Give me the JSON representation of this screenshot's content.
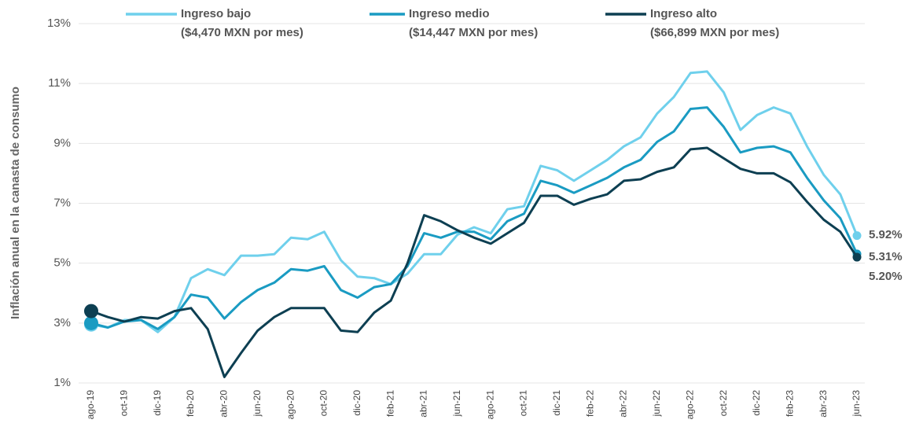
{
  "chart_data": {
    "type": "line",
    "y_label": "Inflación anual en la canasta de consumo",
    "categories": [
      "ago-19",
      null,
      "oct-19",
      null,
      "dic-19",
      null,
      "feb-20",
      null,
      "abr-20",
      null,
      "jun-20",
      null,
      "ago-20",
      null,
      "oct-20",
      null,
      "dic-20",
      null,
      "feb-21",
      null,
      "abr-21",
      null,
      "jun-21",
      null,
      "ago-21",
      null,
      "oct-21",
      null,
      "dic-21",
      null,
      "feb-22",
      null,
      "abr-22",
      null,
      "jun-22",
      null,
      "ago-22",
      null,
      "oct-22",
      null,
      "dic-22",
      null,
      "feb-23",
      null,
      "abr-23",
      null,
      "jun-23"
    ],
    "ylim": [
      1,
      13
    ],
    "yticks": [
      {
        "value": 1,
        "label": "1%"
      },
      {
        "value": 3,
        "label": "3%"
      },
      {
        "value": 5,
        "label": "5%"
      },
      {
        "value": 7,
        "label": "7%"
      },
      {
        "value": 9,
        "label": "9%"
      },
      {
        "value": 11,
        "label": "11%"
      },
      {
        "value": 13,
        "label": "13%"
      }
    ],
    "grid": true,
    "series": [
      {
        "name": "Ingreso bajo",
        "detail": "($4,470 MXN por mes)",
        "color": "#6fd0ec",
        "values": [
          2.95,
          2.85,
          3.1,
          3.1,
          2.7,
          3.2,
          4.5,
          4.8,
          4.6,
          5.25,
          5.25,
          5.3,
          5.85,
          5.8,
          6.05,
          5.1,
          4.55,
          4.5,
          4.3,
          4.65,
          5.3,
          5.3,
          5.95,
          6.2,
          6.0,
          6.8,
          6.9,
          8.25,
          8.1,
          7.75,
          8.1,
          8.45,
          8.9,
          9.2,
          10.0,
          10.55,
          11.35,
          11.4,
          10.7,
          9.45,
          9.95,
          10.2,
          10.0,
          8.9,
          7.95,
          7.3,
          5.92
        ],
        "value_labels": [
          null,
          null,
          null,
          null,
          null,
          null,
          null,
          null,
          null,
          null,
          null,
          null,
          null,
          null,
          null,
          null,
          null,
          null,
          null,
          null,
          null,
          null,
          null,
          null,
          null,
          null,
          null,
          null,
          null,
          null,
          null,
          null,
          null,
          null,
          null,
          null,
          null,
          null,
          null,
          null,
          null,
          null,
          null,
          null,
          null,
          null,
          "5.92%"
        ]
      },
      {
        "name": "Ingreso medio",
        "detail": "($14,447 MXN por mes)",
        "color": "#1a9bc2",
        "values": [
          3.0,
          2.85,
          3.05,
          3.1,
          2.8,
          3.2,
          3.95,
          3.85,
          3.15,
          3.7,
          4.1,
          4.35,
          4.8,
          4.75,
          4.9,
          4.1,
          3.85,
          4.2,
          4.3,
          4.9,
          6.0,
          5.85,
          6.05,
          6.05,
          5.8,
          6.4,
          6.65,
          7.75,
          7.6,
          7.35,
          7.6,
          7.85,
          8.2,
          8.45,
          9.05,
          9.4,
          10.15,
          10.2,
          9.55,
          8.7,
          8.85,
          8.9,
          8.7,
          7.85,
          7.1,
          6.5,
          5.31
        ],
        "value_labels": [
          null,
          null,
          null,
          null,
          null,
          null,
          null,
          null,
          null,
          null,
          null,
          null,
          null,
          null,
          null,
          null,
          null,
          null,
          null,
          null,
          null,
          null,
          null,
          null,
          null,
          null,
          null,
          null,
          null,
          null,
          null,
          null,
          null,
          null,
          null,
          null,
          null,
          null,
          null,
          null,
          null,
          null,
          null,
          null,
          null,
          null,
          "5.31%"
        ]
      },
      {
        "name": "Ingreso alto",
        "detail": "($66,899 MXN por mes)",
        "color": "#0d3f52",
        "values": [
          3.4,
          3.2,
          3.05,
          3.2,
          3.15,
          3.4,
          3.5,
          2.8,
          1.2,
          2.0,
          2.75,
          3.2,
          3.5,
          3.5,
          3.5,
          2.75,
          2.7,
          3.35,
          3.75,
          5.0,
          6.6,
          6.4,
          6.1,
          5.85,
          5.65,
          6.0,
          6.35,
          7.25,
          7.25,
          6.95,
          7.15,
          7.3,
          7.75,
          7.8,
          8.05,
          8.2,
          8.8,
          8.85,
          8.5,
          8.15,
          8.0,
          8.0,
          7.7,
          7.05,
          6.45,
          6.05,
          5.2
        ],
        "value_labels": [
          null,
          null,
          null,
          null,
          null,
          null,
          null,
          null,
          null,
          null,
          null,
          null,
          null,
          null,
          null,
          null,
          null,
          null,
          null,
          null,
          null,
          null,
          null,
          null,
          null,
          null,
          null,
          null,
          null,
          null,
          null,
          null,
          null,
          null,
          null,
          null,
          null,
          null,
          null,
          null,
          null,
          null,
          null,
          null,
          null,
          null,
          "5.20%"
        ]
      }
    ]
  }
}
